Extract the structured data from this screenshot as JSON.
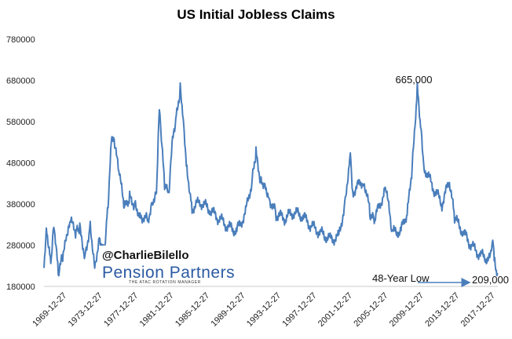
{
  "chart_data": {
    "type": "line",
    "title": "US Initial Jobless Claims",
    "xlabel": "",
    "ylabel": "",
    "ylim": [
      180000,
      780000
    ],
    "y_ticks": [
      "180000",
      "280000",
      "380000",
      "480000",
      "580000",
      "680000",
      "780000"
    ],
    "x_ticks": [
      "1969-12-27",
      "1973-12-27",
      "1977-12-27",
      "1981-12-27",
      "1985-12-27",
      "1989-12-27",
      "1993-12-27",
      "1997-12-27",
      "2001-12-27",
      "2005-12-27",
      "2009-12-27",
      "2013-12-27",
      "2017-12-27"
    ],
    "x_range": [
      "1967-05-27",
      "2018-04-07"
    ],
    "grid": false,
    "line_color": "#4a7ebb",
    "series": [
      {
        "values": [
          [
            "1967-05-27",
            225000
          ],
          [
            "1967-09-01",
            330000
          ],
          [
            "1968-03-01",
            240000
          ],
          [
            "1968-07-01",
            340000
          ],
          [
            "1969-01-01",
            210000
          ],
          [
            "1969-07-01",
            250000
          ],
          [
            "1970-01-01",
            300000
          ],
          [
            "1970-06-01",
            335000
          ],
          [
            "1971-01-01",
            310000
          ],
          [
            "1971-06-01",
            320000
          ],
          [
            "1972-01-01",
            255000
          ],
          [
            "1972-08-01",
            330000
          ],
          [
            "1973-02-01",
            235000
          ],
          [
            "1973-09-01",
            300000
          ],
          [
            "1974-03-01",
            265000
          ],
          [
            "1974-08-01",
            380000
          ],
          [
            "1975-01-01",
            545000
          ],
          [
            "1975-05-01",
            520000
          ],
          [
            "1975-12-01",
            440000
          ],
          [
            "1976-06-01",
            370000
          ],
          [
            "1977-01-01",
            395000
          ],
          [
            "1977-08-01",
            380000
          ],
          [
            "1978-03-01",
            355000
          ],
          [
            "1979-01-01",
            340000
          ],
          [
            "1979-08-01",
            390000
          ],
          [
            "1980-01-01",
            410000
          ],
          [
            "1980-05-01",
            625000
          ],
          [
            "1980-07-01",
            560000
          ],
          [
            "1980-12-01",
            420000
          ],
          [
            "1981-06-01",
            400000
          ],
          [
            "1981-10-01",
            520000
          ],
          [
            "1982-03-01",
            580000
          ],
          [
            "1982-09-01",
            660000
          ],
          [
            "1983-01-01",
            590000
          ],
          [
            "1983-06-01",
            470000
          ],
          [
            "1984-01-01",
            370000
          ],
          [
            "1985-01-01",
            385000
          ],
          [
            "1986-01-01",
            365000
          ],
          [
            "1987-01-01",
            345000
          ],
          [
            "1988-01-01",
            325000
          ],
          [
            "1989-01-01",
            315000
          ],
          [
            "1990-01-01",
            360000
          ],
          [
            "1990-10-01",
            440000
          ],
          [
            "1991-03-01",
            505000
          ],
          [
            "1991-09-01",
            440000
          ],
          [
            "1992-03-01",
            430000
          ],
          [
            "1992-09-01",
            395000
          ],
          [
            "1993-06-01",
            355000
          ],
          [
            "1994-06-01",
            345000
          ],
          [
            "1995-06-01",
            360000
          ],
          [
            "1996-06-01",
            350000
          ],
          [
            "1997-06-01",
            325000
          ],
          [
            "1998-06-01",
            310000
          ],
          [
            "1999-06-01",
            295000
          ],
          [
            "2000-06-01",
            300000
          ],
          [
            "2001-03-01",
            385000
          ],
          [
            "2001-09-22",
            510000
          ],
          [
            "2002-01-01",
            410000
          ],
          [
            "2003-04-01",
            440000
          ],
          [
            "2003-12-01",
            360000
          ],
          [
            "2004-06-01",
            340000
          ],
          [
            "2005-09-15",
            420000
          ],
          [
            "2006-06-01",
            310000
          ],
          [
            "2007-06-01",
            315000
          ],
          [
            "2008-03-01",
            365000
          ],
          [
            "2008-09-01",
            470000
          ],
          [
            "2009-03-28",
            665000
          ],
          [
            "2009-09-01",
            560000
          ],
          [
            "2010-01-01",
            470000
          ],
          [
            "2011-01-01",
            420000
          ],
          [
            "2012-01-01",
            380000
          ],
          [
            "2012-11-01",
            435000
          ],
          [
            "2013-06-01",
            345000
          ],
          [
            "2014-06-01",
            310000
          ],
          [
            "2015-06-01",
            275000
          ],
          [
            "2016-06-01",
            255000
          ],
          [
            "2017-06-01",
            245000
          ],
          [
            "2017-09-09",
            290000
          ],
          [
            "2017-12-01",
            240000
          ],
          [
            "2018-02-24",
            215000
          ],
          [
            "2018-04-07",
            209000
          ]
        ]
      }
    ],
    "annotations": [
      {
        "text": "665,000",
        "x": "2009-03-28",
        "y": 665000
      },
      {
        "text": "48-Year Low",
        "x": "2010-02-01",
        "y": 209000
      },
      {
        "text": "209,000",
        "x": "2018-04-07",
        "y": 209000
      }
    ]
  },
  "watermark": {
    "handle": "@CharlieBilello",
    "brand": "Pension Partners",
    "tagline": "THE ATAC ROTATION MANAGER"
  }
}
